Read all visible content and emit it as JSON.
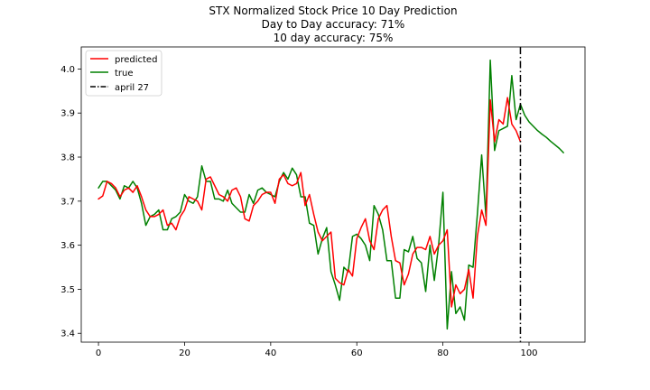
{
  "chart_data": {
    "type": "line",
    "title_lines": [
      "STX Normalized Stock Price 10 Day Prediction",
      "Day to Day accuracy: 71%",
      "10 day accuracy: 75%"
    ],
    "xlim": [
      -4,
      113
    ],
    "ylim": [
      3.38,
      4.05
    ],
    "xticks": [
      0,
      20,
      40,
      60,
      80,
      100
    ],
    "xtick_labels": [
      "0",
      "20",
      "40",
      "60",
      "80",
      "100"
    ],
    "yticks": [
      3.4,
      3.5,
      3.6,
      3.7,
      3.8,
      3.9,
      4.0
    ],
    "ytick_labels": [
      "3.4",
      "3.5",
      "3.6",
      "3.7",
      "3.8",
      "3.9",
      "4.0"
    ],
    "legend_position": "upper-left",
    "series": [
      {
        "name": "predicted",
        "color": "#ff0000",
        "x": [
          0,
          1,
          2,
          3,
          4,
          5,
          6,
          7,
          8,
          9,
          10,
          11,
          12,
          13,
          14,
          15,
          16,
          17,
          18,
          19,
          20,
          21,
          22,
          23,
          24,
          25,
          26,
          27,
          28,
          29,
          30,
          31,
          32,
          33,
          34,
          35,
          36,
          37,
          38,
          39,
          40,
          41,
          42,
          43,
          44,
          45,
          46,
          47,
          48,
          49,
          50,
          51,
          52,
          53,
          54,
          55,
          56,
          57,
          58,
          59,
          60,
          61,
          62,
          63,
          64,
          65,
          66,
          67,
          68,
          69,
          70,
          71,
          72,
          73,
          74,
          75,
          76,
          77,
          78,
          79,
          80,
          81,
          82,
          83,
          84,
          85,
          86,
          87,
          88,
          89,
          90,
          91,
          92,
          93,
          94,
          95,
          96,
          97,
          98
        ],
        "y": [
          3.705,
          3.712,
          3.745,
          3.74,
          3.73,
          3.71,
          3.725,
          3.73,
          3.72,
          3.735,
          3.71,
          3.68,
          3.665,
          3.665,
          3.67,
          3.68,
          3.645,
          3.65,
          3.635,
          3.665,
          3.68,
          3.71,
          3.705,
          3.7,
          3.68,
          3.75,
          3.755,
          3.735,
          3.715,
          3.71,
          3.7,
          3.725,
          3.73,
          3.71,
          3.66,
          3.655,
          3.69,
          3.7,
          3.715,
          3.72,
          3.72,
          3.695,
          3.75,
          3.76,
          3.74,
          3.735,
          3.74,
          3.765,
          3.69,
          3.715,
          3.67,
          3.63,
          3.61,
          3.62,
          3.63,
          3.525,
          3.515,
          3.51,
          3.545,
          3.53,
          3.615,
          3.64,
          3.66,
          3.61,
          3.59,
          3.66,
          3.68,
          3.69,
          3.62,
          3.565,
          3.56,
          3.51,
          3.535,
          3.58,
          3.595,
          3.595,
          3.59,
          3.62,
          3.58,
          3.6,
          3.61,
          3.635,
          3.46,
          3.51,
          3.49,
          3.5,
          3.545,
          3.48,
          3.62,
          3.68,
          3.645,
          3.93,
          3.835,
          3.885,
          3.875,
          3.935,
          3.875,
          3.86,
          3.835
        ]
      },
      {
        "name": "true",
        "color": "#008000",
        "x": [
          0,
          1,
          2,
          3,
          4,
          5,
          6,
          7,
          8,
          9,
          10,
          11,
          12,
          13,
          14,
          15,
          16,
          17,
          18,
          19,
          20,
          21,
          22,
          23,
          24,
          25,
          26,
          27,
          28,
          29,
          30,
          31,
          32,
          33,
          34,
          35,
          36,
          37,
          38,
          39,
          40,
          41,
          42,
          43,
          44,
          45,
          46,
          47,
          48,
          49,
          50,
          51,
          52,
          53,
          54,
          55,
          56,
          57,
          58,
          59,
          60,
          61,
          62,
          63,
          64,
          65,
          66,
          67,
          68,
          69,
          70,
          71,
          72,
          73,
          74,
          75,
          76,
          77,
          78,
          79,
          80,
          81,
          82,
          83,
          84,
          85,
          86,
          87,
          88,
          89,
          90,
          91,
          92,
          93,
          94,
          95,
          96,
          97,
          98,
          99,
          100,
          101,
          102,
          103,
          104,
          105,
          106,
          107,
          108
        ],
        "y": [
          3.73,
          3.745,
          3.745,
          3.735,
          3.725,
          3.705,
          3.735,
          3.73,
          3.745,
          3.73,
          3.695,
          3.645,
          3.665,
          3.67,
          3.68,
          3.635,
          3.635,
          3.66,
          3.665,
          3.675,
          3.715,
          3.7,
          3.695,
          3.71,
          3.78,
          3.745,
          3.745,
          3.705,
          3.705,
          3.7,
          3.725,
          3.695,
          3.685,
          3.675,
          3.675,
          3.715,
          3.695,
          3.725,
          3.73,
          3.72,
          3.715,
          3.71,
          3.745,
          3.765,
          3.75,
          3.775,
          3.76,
          3.71,
          3.71,
          3.65,
          3.645,
          3.58,
          3.615,
          3.64,
          3.54,
          3.51,
          3.475,
          3.55,
          3.54,
          3.62,
          3.625,
          3.615,
          3.6,
          3.565,
          3.69,
          3.67,
          3.635,
          3.565,
          3.565,
          3.48,
          3.48,
          3.59,
          3.585,
          3.62,
          3.57,
          3.56,
          3.495,
          3.6,
          3.52,
          3.6,
          3.72,
          3.41,
          3.54,
          3.445,
          3.46,
          3.43,
          3.555,
          3.55,
          3.67,
          3.805,
          3.665,
          4.02,
          3.815,
          3.86,
          3.865,
          3.87,
          3.985,
          3.885,
          3.92,
          3.895,
          3.88,
          3.87,
          3.86,
          3.852,
          3.845,
          3.836,
          3.828,
          3.82,
          3.81
        ]
      }
    ],
    "vline": {
      "x": 98,
      "label": "april 27",
      "color": "#000000"
    }
  }
}
